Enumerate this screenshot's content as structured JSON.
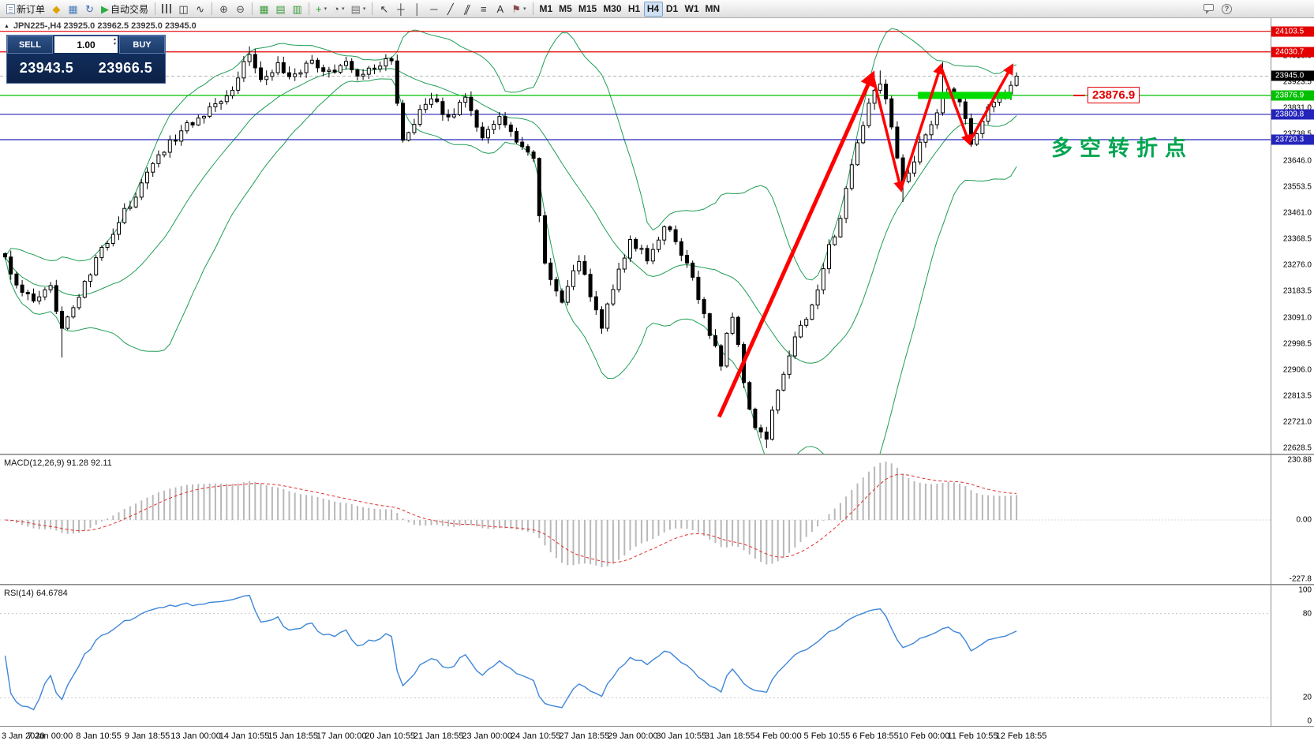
{
  "ui_icons": {
    "dropdown": "▾",
    "spinner_up": "▴",
    "spinner_down": "▾",
    "panel_toggle": "▲"
  },
  "toolbar": {
    "groups": [
      {
        "items": [
          {
            "name": "new-order-button",
            "icon": "document",
            "label": "新订单"
          },
          {
            "name": "metaeditor-button",
            "glyph": "◆",
            "color": "#dca402"
          },
          {
            "name": "data-window-button",
            "glyph": "▦",
            "color": "#4a7ebb"
          },
          {
            "name": "refresh-button",
            "glyph": "↻",
            "color": "#3f6fb5"
          },
          {
            "name": "autotrading-button",
            "glyph": "▶",
            "color": "#2fae3f",
            "label": "自动交易"
          }
        ]
      },
      {
        "items": [
          {
            "name": "bar-chart-button",
            "icon": "bars"
          },
          {
            "name": "candlestick-chart-button",
            "glyph": "◫",
            "color": "#333333"
          },
          {
            "name": "line-chart-button",
            "glyph": "∿",
            "color": "#333333"
          }
        ]
      },
      {
        "items": [
          {
            "name": "zoom-in-button",
            "glyph": "⊕",
            "color": "#4f4f4f"
          },
          {
            "name": "zoom-out-button",
            "glyph": "⊖",
            "color": "#4f4f4f"
          }
        ]
      },
      {
        "items": [
          {
            "name": "tile-windows-button",
            "glyph": "▦",
            "color": "#3e9a3e"
          },
          {
            "name": "cascade-windows-button",
            "glyph": "▤",
            "color": "#3e9a3e"
          },
          {
            "name": "arrange-windows-button",
            "glyph": "▥",
            "color": "#3e9a3e"
          }
        ]
      },
      {
        "items": [
          {
            "name": "indicators-button",
            "glyph": "+",
            "color": "#1e9e1e",
            "dropdown": true
          },
          {
            "name": "periods-button",
            "glyph": "◔",
            "color": "#4f4f4f",
            "dropdown": true
          },
          {
            "name": "templates-button",
            "glyph": "▤",
            "color": "#6f6f6f",
            "dropdown": true
          }
        ]
      },
      {
        "items": [
          {
            "name": "cursor-button",
            "glyph": "↖",
            "color": "#333333"
          },
          {
            "name": "crosshair-button",
            "glyph": "┼",
            "color": "#333333"
          },
          {
            "name": "vertical-line-button",
            "glyph": "│",
            "color": "#333333"
          },
          {
            "name": "horizontal-line-button",
            "glyph": "─",
            "color": "#333333"
          },
          {
            "name": "trendline-button",
            "glyph": "╱",
            "color": "#333333"
          },
          {
            "name": "channel-button",
            "glyph": "∥",
            "color": "#333333",
            "skew": true
          },
          {
            "name": "fibonacci-button",
            "glyph": "≡",
            "color": "#333333"
          },
          {
            "name": "text-button",
            "glyph": "A",
            "color": "#333333"
          },
          {
            "name": "arrows-button",
            "glyph": "⚑",
            "color": "#8a4a4a",
            "dropdown": true
          }
        ]
      },
      {
        "kind": "timeframes",
        "items": [
          {
            "name": "timeframe-m1",
            "label": "M1"
          },
          {
            "name": "timeframe-m5",
            "label": "M5"
          },
          {
            "name": "timeframe-m15",
            "label": "M15"
          },
          {
            "name": "timeframe-m30",
            "label": "M30"
          },
          {
            "name": "timeframe-h1",
            "label": "H1"
          },
          {
            "name": "timeframe-h4",
            "label": "H4",
            "active": true
          },
          {
            "name": "timeframe-d1",
            "label": "D1"
          },
          {
            "name": "timeframe-w1",
            "label": "W1"
          },
          {
            "name": "timeframe-mn",
            "label": "MN"
          }
        ]
      },
      {
        "right": true,
        "items": [
          {
            "name": "chat-button",
            "icon": "chat"
          },
          {
            "name": "help-button",
            "icon": "help"
          }
        ]
      }
    ]
  },
  "chart": {
    "symbol_info": "JPN225-,H4 23925.0 23962.5 23925.0 23945.0",
    "trade_panel": {
      "sell_label": "SELL",
      "buy_label": "BUY",
      "lot_size": "1.00",
      "sell_price": "23943.5",
      "buy_price": "23966.5"
    },
    "current_price": "23945.0",
    "levels": [
      {
        "price": "24103.5",
        "color": "#e40000"
      },
      {
        "price": "24030.7",
        "color": "#e40000"
      },
      {
        "price": "23876.9",
        "color": "#00c000"
      },
      {
        "price": "23809.8",
        "color": "#2424bc"
      },
      {
        "price": "23720.3",
        "color": "#2424bc"
      }
    ],
    "annotation": {
      "price_label": "23876.9",
      "turning_point_text": "多空转折点",
      "color": "#00a550",
      "callout_color": "#e40000"
    }
  },
  "macd": {
    "label": "MACD(12,26,9) 91.28 92.11",
    "scale": [
      {
        "label": "230.88",
        "v": 230.88
      },
      {
        "label": "0.00",
        "v": 0
      },
      {
        "label": "-227.8",
        "v": -227.8
      }
    ],
    "bar_color": "#b8b8b8",
    "signal_color": "#e03030"
  },
  "rsi": {
    "label": "RSI(14) 64.6784",
    "scale": [
      {
        "label": "100",
        "v": 100
      },
      {
        "label": "80",
        "v": 80
      },
      {
        "label": "20",
        "v": 20
      },
      {
        "label": "0",
        "v": 0
      }
    ],
    "levels": [
      80,
      20
    ],
    "line_color": "#3e86d8"
  },
  "time_axis": {
    "labels": [
      "3 Jan 2020",
      "7 Jan 00:00",
      "8 Jan 10:55",
      "9 Jan 18:55",
      "13 Jan 00:00",
      "14 Jan 10:55",
      "15 Jan 18:55",
      "17 Jan 00:00",
      "20 Jan 10:55",
      "21 Jan 18:55",
      "23 Jan 00:00",
      "24 Jan 10:55",
      "27 Jan 18:55",
      "29 Jan 00:00",
      "30 Jan 10:55",
      "31 Jan 18:55",
      "4 Feb 00:00",
      "5 Feb 10:55",
      "6 Feb 18:55",
      "10 Feb 00:00",
      "11 Feb 10:55",
      "12 Feb 18:55"
    ]
  },
  "chart_data": {
    "type": "candlestick",
    "symbol": "JPN225-",
    "timeframe": "H4",
    "candle_count": 179,
    "candle_spacing": 7.2,
    "price_axis": {
      "max": 24150,
      "min": 22610,
      "ticks": [
        "24016.0",
        "23923.5",
        "23831.0",
        "23738.5",
        "23646.0",
        "23553.5",
        "23461.0",
        "23368.5",
        "23276.0",
        "23183.5",
        "23091.0",
        "22998.5",
        "22906.0",
        "22813.5",
        "22721.0",
        "22628.5"
      ]
    },
    "waypoints": [
      [
        0,
        23300
      ],
      [
        2,
        23210
      ],
      [
        5,
        23140
      ],
      [
        8,
        23190
      ],
      [
        10,
        23070
      ],
      [
        13,
        23160
      ],
      [
        16,
        23290
      ],
      [
        20,
        23430
      ],
      [
        24,
        23560
      ],
      [
        28,
        23690
      ],
      [
        32,
        23770
      ],
      [
        36,
        23830
      ],
      [
        40,
        23910
      ],
      [
        43,
        24030
      ],
      [
        45,
        23930
      ],
      [
        48,
        23985
      ],
      [
        51,
        23940
      ],
      [
        54,
        23995
      ],
      [
        57,
        23955
      ],
      [
        60,
        23985
      ],
      [
        63,
        23950
      ],
      [
        66,
        23990
      ],
      [
        68,
        24000
      ],
      [
        70,
        23720
      ],
      [
        72,
        23790
      ],
      [
        75,
        23865
      ],
      [
        78,
        23805
      ],
      [
        81,
        23855
      ],
      [
        84,
        23735
      ],
      [
        87,
        23795
      ],
      [
        90,
        23705
      ],
      [
        93,
        23645
      ],
      [
        95,
        23270
      ],
      [
        98,
        23155
      ],
      [
        101,
        23295
      ],
      [
        103,
        23165
      ],
      [
        105,
        23065
      ],
      [
        108,
        23275
      ],
      [
        110,
        23355
      ],
      [
        113,
        23305
      ],
      [
        116,
        23405
      ],
      [
        118,
        23365
      ],
      [
        121,
        23235
      ],
      [
        124,
        23025
      ],
      [
        126,
        22935
      ],
      [
        128,
        23105
      ],
      [
        130,
        22865
      ],
      [
        132,
        22695
      ],
      [
        134,
        22675
      ],
      [
        136,
        22825
      ],
      [
        138,
        22965
      ],
      [
        140,
        23060
      ],
      [
        142,
        23130
      ],
      [
        144,
        23280
      ],
      [
        147,
        23450
      ],
      [
        150,
        23700
      ],
      [
        152,
        23850
      ],
      [
        154,
        23930
      ],
      [
        155,
        23850
      ],
      [
        156,
        23760
      ],
      [
        158,
        23560
      ],
      [
        160,
        23650
      ],
      [
        162,
        23740
      ],
      [
        164,
        23830
      ],
      [
        165,
        23880
      ],
      [
        166,
        23895
      ],
      [
        168,
        23840
      ],
      [
        169,
        23780
      ],
      [
        170,
        23720
      ],
      [
        171,
        23750
      ],
      [
        173,
        23820
      ],
      [
        175,
        23870
      ],
      [
        177,
        23910
      ],
      [
        178,
        23945
      ]
    ],
    "special_wicks": {
      "10": {
        "low": 22950
      },
      "43": {
        "high": 24050
      },
      "134": {
        "low": 22630
      },
      "154": {
        "high": 23965
      },
      "158": {
        "low": 23500
      },
      "165": {
        "high": 23995
      }
    },
    "bollinger": {
      "period": 20,
      "deviation": 2,
      "color": "#1f9d55"
    },
    "zigzag": {
      "color": "#ff0000",
      "points": [
        [
          126,
          22740
        ],
        [
          153,
          23950
        ],
        [
          158,
          23545
        ],
        [
          165,
          23980
        ],
        [
          170,
          23710
        ],
        [
          177.5,
          23980
        ]
      ]
    },
    "highlight_bar": {
      "from": 161,
      "to": 177.5,
      "price": 23876.9,
      "thickness": 9,
      "color": "#00dc00"
    }
  }
}
